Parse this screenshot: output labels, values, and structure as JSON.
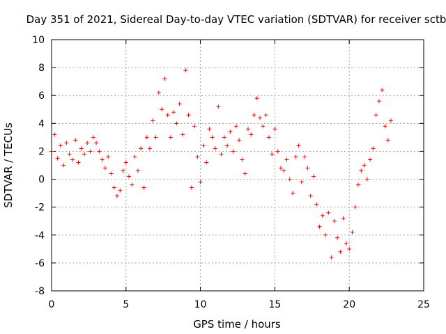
{
  "chart_data": {
    "type": "scatter",
    "title": "Day 351 of 2021, Sidereal Day-to-day VTEC variation (SDTVAR) for receiver sctb",
    "xlabel": "GPS time / hours",
    "ylabel": "SDTVAR / TECUs",
    "xlim": [
      0,
      25
    ],
    "ylim": [
      -8,
      10
    ],
    "xticks": [
      0,
      5,
      10,
      15,
      20,
      25
    ],
    "yticks": [
      -8,
      -6,
      -4,
      -2,
      0,
      2,
      4,
      6,
      8,
      10
    ],
    "xtick_labels": [
      "0",
      "5",
      "10",
      "15",
      "20",
      "25"
    ],
    "ytick_labels": [
      "-8",
      "-6",
      "-4",
      "-2",
      "0",
      "2",
      "4",
      "6",
      "8",
      "10"
    ],
    "grid": true,
    "marker": "+",
    "color": "#ff0000",
    "series": [
      {
        "name": "SDTVAR",
        "x": [
          0.0,
          0.2,
          0.4,
          0.6,
          0.8,
          1.0,
          1.2,
          1.4,
          1.6,
          1.8,
          2.0,
          2.2,
          2.4,
          2.6,
          2.8,
          3.0,
          3.2,
          3.4,
          3.6,
          3.8,
          4.0,
          4.2,
          4.4,
          4.6,
          4.8,
          5.0,
          5.2,
          5.4,
          5.6,
          5.8,
          6.0,
          6.2,
          6.4,
          6.6,
          6.8,
          7.0,
          7.2,
          7.4,
          7.6,
          7.8,
          8.0,
          8.2,
          8.4,
          8.6,
          8.8,
          9.0,
          9.2,
          9.4,
          9.6,
          9.8,
          10.0,
          10.2,
          10.4,
          10.6,
          10.8,
          11.0,
          11.2,
          11.4,
          11.6,
          11.8,
          12.0,
          12.2,
          12.4,
          12.6,
          12.8,
          13.0,
          13.2,
          13.4,
          13.6,
          13.8,
          14.0,
          14.2,
          14.4,
          14.6,
          14.8,
          15.0,
          15.2,
          15.4,
          15.6,
          15.8,
          16.0,
          16.2,
          16.4,
          16.6,
          16.8,
          17.0,
          17.2,
          17.4,
          17.6,
          17.8,
          18.0,
          18.2,
          18.4,
          18.6,
          18.8,
          19.0,
          19.2,
          19.4,
          19.6,
          19.8,
          20.0,
          20.2,
          20.4,
          20.6,
          20.8,
          21.0,
          21.2,
          21.4,
          21.6,
          21.8,
          22.0,
          22.2,
          22.4,
          22.6,
          22.8
        ],
        "y": [
          2.0,
          3.2,
          1.5,
          2.4,
          1.0,
          2.6,
          1.8,
          1.4,
          2.8,
          1.2,
          2.2,
          1.8,
          2.6,
          2.0,
          3.0,
          2.6,
          2.0,
          1.4,
          0.8,
          1.6,
          0.4,
          -0.6,
          -1.2,
          -0.8,
          0.6,
          1.2,
          0.2,
          -0.4,
          1.6,
          0.6,
          2.2,
          -0.6,
          3.0,
          2.2,
          4.2,
          3.0,
          6.2,
          5.0,
          7.2,
          4.6,
          3.0,
          4.8,
          4.0,
          5.4,
          3.2,
          7.8,
          4.6,
          -0.6,
          3.8,
          1.6,
          -0.2,
          2.4,
          1.2,
          3.6,
          3.0,
          2.2,
          5.2,
          1.8,
          3.0,
          2.4,
          3.4,
          2.0,
          3.8,
          2.8,
          1.4,
          0.4,
          3.6,
          3.2,
          4.6,
          5.8,
          4.4,
          3.8,
          4.6,
          3.0,
          1.8,
          3.6,
          2.0,
          0.8,
          0.6,
          1.4,
          0.0,
          -1.0,
          1.6,
          2.4,
          -0.2,
          1.6,
          0.8,
          -1.2,
          0.2,
          -1.8,
          -3.4,
          -2.6,
          -4.0,
          -2.4,
          -5.6,
          -3.0,
          -4.2,
          -5.2,
          -2.8,
          -4.6,
          -5.0,
          -3.8,
          -2.0,
          -0.4,
          0.6,
          1.0,
          0.0,
          1.4,
          2.2,
          4.6,
          5.6,
          6.4,
          3.8,
          2.8,
          4.2
        ]
      }
    ]
  }
}
